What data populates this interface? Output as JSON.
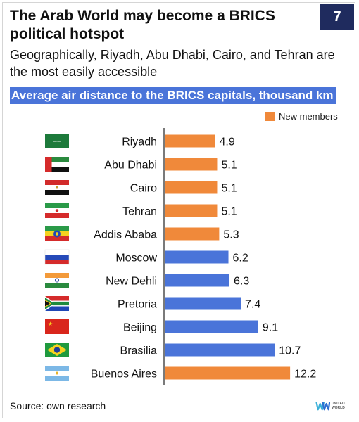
{
  "header": {
    "title": "The Arab World may become a BRICS political hotspot",
    "page_number": "7",
    "subtitle": "Geographically, Riyadh, Abu Dhabi, Cairo, and Tehran are the most easily accessible"
  },
  "footer": {
    "source": "Source: own research",
    "logo_text": "UNITED WORLD"
  },
  "colors": {
    "new_members": "#f0893a",
    "founding": "#4a74d9",
    "title_bg": "#4a74d9",
    "page_num_bg": "#1f2b5e"
  },
  "chart_data": {
    "type": "bar",
    "orientation": "horizontal",
    "title": "Average air distance to the BRICS capitals, thousand km",
    "legend": [
      {
        "label": "New members",
        "color": "#f0893a"
      }
    ],
    "legend_position": "top-right",
    "grid": false,
    "xlim": [
      0,
      12.5
    ],
    "categories": [
      "Riyadh",
      "Abu Dhabi",
      "Cairo",
      "Tehran",
      "Addis Ababa",
      "Moscow",
      "New Dehli",
      "Pretoria",
      "Beijing",
      "Brasilia",
      "Buenos Aires"
    ],
    "values": [
      4.9,
      5.1,
      5.1,
      5.1,
      5.3,
      6.2,
      6.3,
      7.4,
      9.1,
      10.7,
      12.2
    ],
    "value_labels": [
      "4.9",
      "5.1",
      "5.1",
      "5.1",
      "5.3",
      "6.2",
      "6.3",
      "7.4",
      "9.1",
      "10.7",
      "12.2"
    ],
    "groups": [
      "new",
      "new",
      "new",
      "new",
      "new",
      "founding",
      "founding",
      "founding",
      "founding",
      "founding",
      "new"
    ],
    "flags": [
      "saudi-arabia-flag-icon",
      "uae-flag-icon",
      "egypt-flag-icon",
      "iran-flag-icon",
      "ethiopia-flag-icon",
      "russia-flag-icon",
      "india-flag-icon",
      "south-africa-flag-icon",
      "china-flag-icon",
      "brazil-flag-icon",
      "argentina-flag-icon"
    ]
  }
}
